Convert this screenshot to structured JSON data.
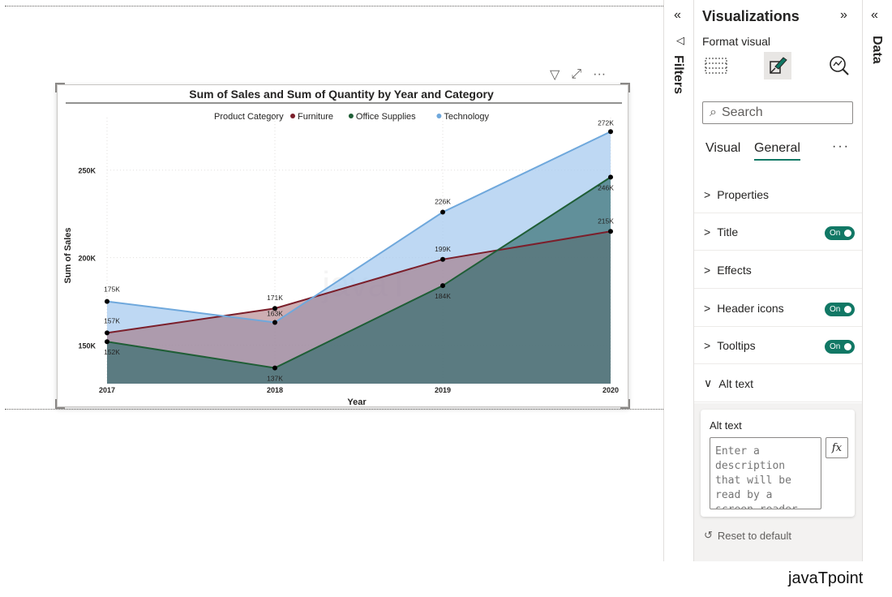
{
  "filters_pane": {
    "collapse_icon": "«",
    "funnel_icon": "◁",
    "label": "Filters"
  },
  "visualizations": {
    "title": "Visualizations",
    "expand_icon": "»",
    "format_label": "Format visual",
    "search_placeholder": "Search",
    "tabs": [
      "Visual",
      "General"
    ],
    "active_tab": "General",
    "more": "···",
    "sections": [
      {
        "label": "Properties",
        "chevron": ">"
      },
      {
        "label": "Title",
        "chevron": ">",
        "toggle": "On"
      },
      {
        "label": "Effects",
        "chevron": ">"
      },
      {
        "label": "Header icons",
        "chevron": ">",
        "toggle": "On"
      },
      {
        "label": "Tooltips",
        "chevron": ">",
        "toggle": "On"
      },
      {
        "label": "Alt text",
        "chevron": "∨"
      }
    ],
    "alt_text": {
      "label": "Alt text",
      "placeholder": "Enter a description that will be read by a screen reader on selecting the visual.",
      "fx": "fx"
    },
    "reset_label": "Reset to default"
  },
  "data_pane": {
    "collapse_icon": "«",
    "label": "Data"
  },
  "visual_header": {
    "filter_icon": "▽",
    "focus_icon": "⤢",
    "more_icon": "···"
  },
  "brand": "javaTpoint",
  "colors": {
    "accent": "#117865",
    "furniture": "#7b1f2b",
    "office_supplies": "#1f5e36",
    "technology": "#6fa8dc"
  },
  "chart_data": {
    "type": "area",
    "title": "Sum of Sales and Sum of Quantity by Year and Category",
    "legend_title": "Product Category",
    "legend_position": "top-center",
    "xlabel": "Year",
    "ylabel": "Sum of Sales",
    "categories": [
      "2017",
      "2018",
      "2019",
      "2020"
    ],
    "ylim": [
      128000,
      280000
    ],
    "yticks": [
      150000,
      200000,
      250000
    ],
    "ytick_labels": [
      "150K",
      "200K",
      "250K"
    ],
    "series": [
      {
        "name": "Furniture",
        "values": [
          157000,
          171000,
          199000,
          215000
        ],
        "labels": [
          "157K",
          "171K",
          "199K",
          "215K"
        ]
      },
      {
        "name": "Office Supplies",
        "values": [
          152000,
          137000,
          184000,
          246000
        ],
        "labels": [
          "152K",
          "137K",
          "184K",
          "246K"
        ]
      },
      {
        "name": "Technology",
        "values": [
          175000,
          163000,
          226000,
          272000
        ],
        "labels": [
          "175K",
          "163K",
          "226K",
          "272K"
        ]
      }
    ],
    "watermark": "javaT"
  }
}
